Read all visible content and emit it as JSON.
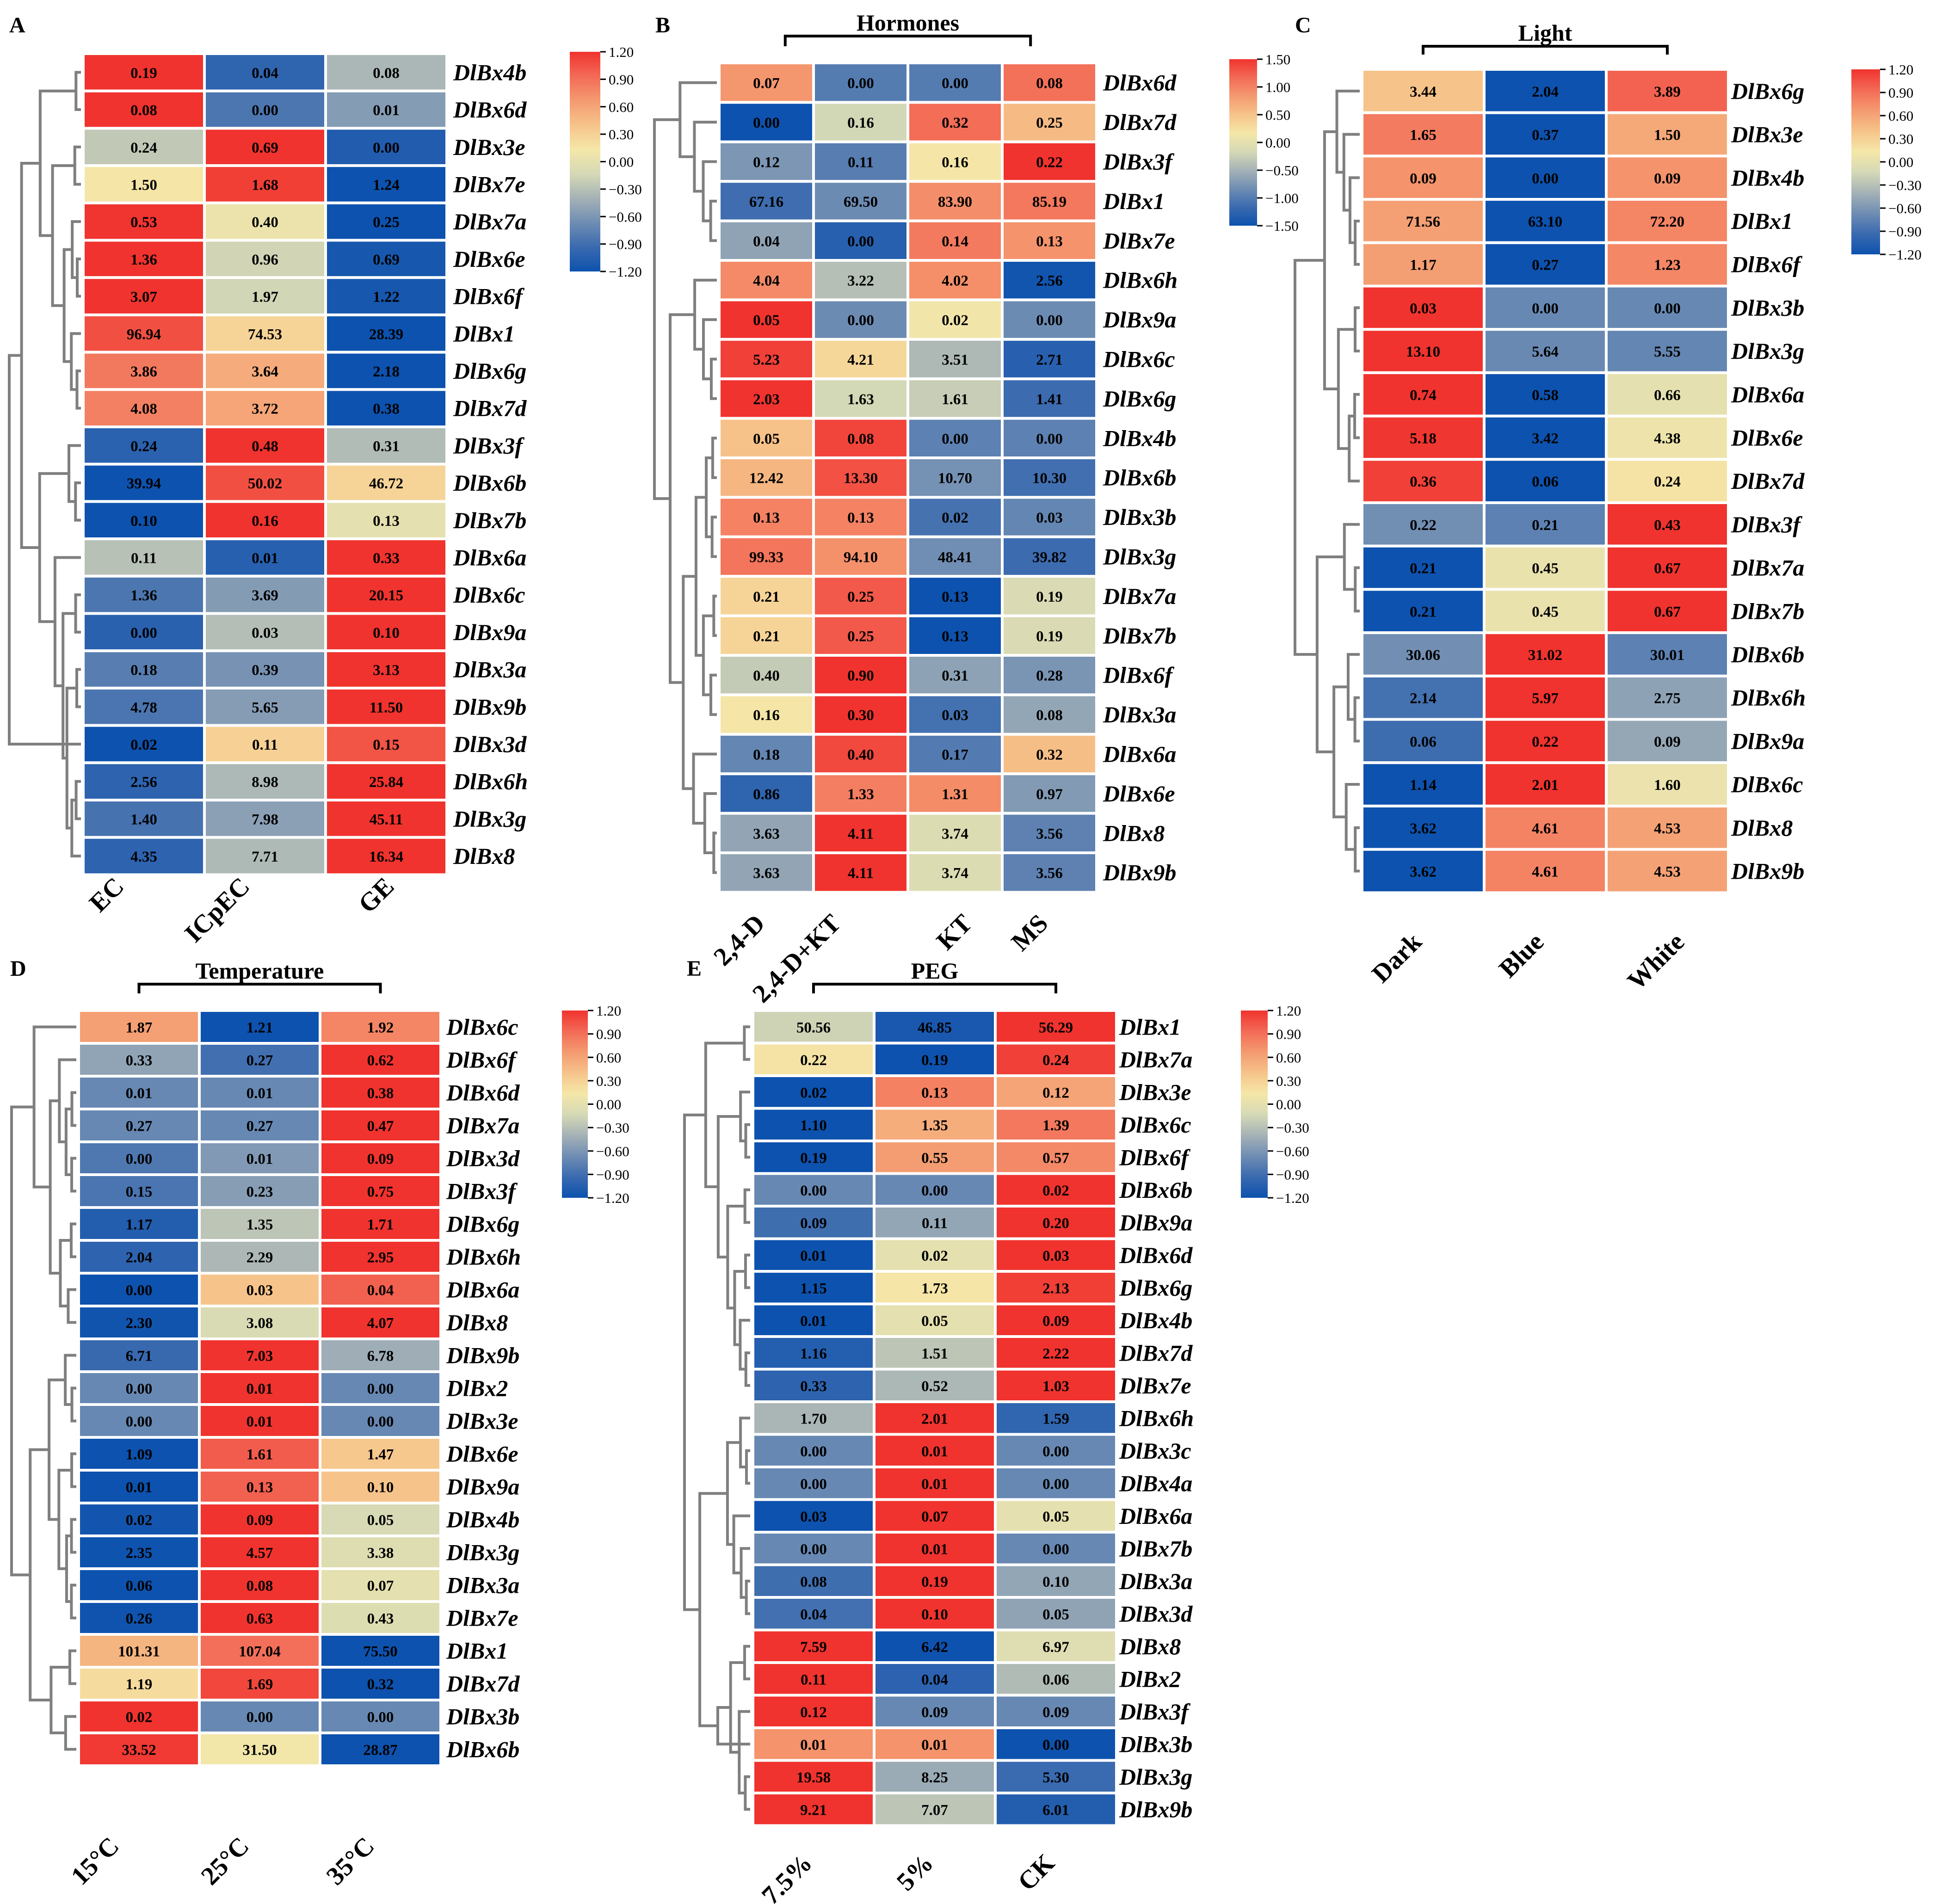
{
  "colors": {
    "scale": [
      "#0D52AE",
      "#3A6AAF",
      "#6F8DB3",
      "#A5B2B6",
      "#D5D9B6",
      "#F5E7A8",
      "#F6C38A",
      "#F49A70",
      "#F36A56",
      "#F0332E"
    ],
    "text": "#000000",
    "tree": "#7F7F7F",
    "grid": "#FFFFFF"
  },
  "chart_data": [
    {
      "type": "heatmap",
      "panel_label": "A",
      "columns": [
        "EC",
        "ICpEC",
        "GE"
      ],
      "rows": [
        "DlBx4b",
        "DlBx6d",
        "DlBx3e",
        "DlBx7e",
        "DlBx7a",
        "DlBx6e",
        "DlBx6f",
        "DlBx1",
        "DlBx6g",
        "DlBx7d",
        "DlBx3f",
        "DlBx6b",
        "DlBx7b",
        "DlBx6a",
        "DlBx6c",
        "DlBx9a",
        "DlBx3a",
        "DlBx9b",
        "DlBx3d",
        "DlBx6h",
        "DlBx3g",
        "DlBx8"
      ],
      "labels": [
        [
          "0.19",
          "0.04",
          "0.08"
        ],
        [
          "0.08",
          "0.00",
          "0.01"
        ],
        [
          "0.24",
          "0.69",
          "0.00"
        ],
        [
          "1.50",
          "1.68",
          "1.24"
        ],
        [
          "0.53",
          "0.40",
          "0.25"
        ],
        [
          "1.36",
          "0.96",
          "0.69"
        ],
        [
          "3.07",
          "1.97",
          "1.22"
        ],
        [
          "96.94",
          "74.53",
          "28.39"
        ],
        [
          "3.86",
          "3.64",
          "2.18"
        ],
        [
          "4.08",
          "3.72",
          "0.38"
        ],
        [
          "0.24",
          "0.48",
          "0.31"
        ],
        [
          "39.94",
          "50.02",
          "46.72"
        ],
        [
          "0.10",
          "0.16",
          "0.13"
        ],
        [
          "0.11",
          "0.01",
          "0.33"
        ],
        [
          "1.36",
          "3.69",
          "20.15"
        ],
        [
          "0.00",
          "0.03",
          "0.10"
        ],
        [
          "0.18",
          "0.39",
          "3.13"
        ],
        [
          "4.78",
          "5.65",
          "11.50"
        ],
        [
          "0.02",
          "0.11",
          "0.15"
        ],
        [
          "2.56",
          "8.98",
          "25.84"
        ],
        [
          "1.40",
          "7.98",
          "45.11"
        ],
        [
          "4.35",
          "7.71",
          "16.34"
        ]
      ],
      "scale_ticks": [
        "1.20",
        "0.90",
        "0.60",
        "0.30",
        "0.00",
        "−0.30",
        "−0.60",
        "−0.90",
        "−1.20"
      ],
      "scale_range": [
        -1.2,
        1.2
      ]
    },
    {
      "type": "heatmap",
      "panel_label": "B",
      "group_title": "Hormones",
      "columns": [
        "2,4-D",
        "2,4-D+KT",
        "KT",
        "MS"
      ],
      "rows": [
        "DlBx6d",
        "DlBx7d",
        "DlBx3f",
        "DlBx1",
        "DlBx7e",
        "DlBx6h",
        "DlBx9a",
        "DlBx6c",
        "DlBx6g",
        "DlBx4b",
        "DlBx6b",
        "DlBx3b",
        "DlBx3g",
        "DlBx7a",
        "DlBx7b",
        "DlBx6f",
        "DlBx3a",
        "DlBx6a",
        "DlBx6e",
        "DlBx8",
        "DlBx9b"
      ],
      "labels": [
        [
          "0.07",
          "0.00",
          "0.00",
          "0.08"
        ],
        [
          "0.00",
          "0.16",
          "0.32",
          "0.25"
        ],
        [
          "0.12",
          "0.11",
          "0.16",
          "0.22"
        ],
        [
          "67.16",
          "69.50",
          "83.90",
          "85.19"
        ],
        [
          "0.04",
          "0.00",
          "0.14",
          "0.13"
        ],
        [
          "4.04",
          "3.22",
          "4.02",
          "2.56"
        ],
        [
          "0.05",
          "0.00",
          "0.02",
          "0.00"
        ],
        [
          "5.23",
          "4.21",
          "3.51",
          "2.71"
        ],
        [
          "2.03",
          "1.63",
          "1.61",
          "1.41"
        ],
        [
          "0.05",
          "0.08",
          "0.00",
          "0.00"
        ],
        [
          "12.42",
          "13.30",
          "10.70",
          "10.30"
        ],
        [
          "0.13",
          "0.13",
          "0.02",
          "0.03"
        ],
        [
          "99.33",
          "94.10",
          "48.41",
          "39.82"
        ],
        [
          "0.21",
          "0.25",
          "0.13",
          "0.19"
        ],
        [
          "0.21",
          "0.25",
          "0.13",
          "0.19"
        ],
        [
          "0.40",
          "0.90",
          "0.31",
          "0.28"
        ],
        [
          "0.16",
          "0.30",
          "0.03",
          "0.08"
        ],
        [
          "0.18",
          "0.40",
          "0.17",
          "0.32"
        ],
        [
          "0.86",
          "1.33",
          "1.31",
          "0.97"
        ],
        [
          "3.63",
          "4.11",
          "3.74",
          "3.56"
        ],
        [
          "3.63",
          "4.11",
          "3.74",
          "3.56"
        ]
      ],
      "scale_ticks": [
        "1.50",
        "1.00",
        "0.50",
        "0.00",
        "−0.50",
        "−1.00",
        "−1.50"
      ],
      "scale_range": [
        -1.5,
        1.5
      ]
    },
    {
      "type": "heatmap",
      "panel_label": "C",
      "group_title": "Light",
      "columns": [
        "Dark",
        "Blue",
        "White"
      ],
      "rows": [
        "DlBx6g",
        "DlBx3e",
        "DlBx4b",
        "DlBx1",
        "DlBx6f",
        "DlBx3b",
        "DlBx3g",
        "DlBx6a",
        "DlBx6e",
        "DlBx7d",
        "DlBx3f",
        "DlBx7a",
        "DlBx7b",
        "DlBx6b",
        "DlBx6h",
        "DlBx9a",
        "DlBx6c",
        "DlBx8",
        "DlBx9b"
      ],
      "labels": [
        [
          "3.44",
          "2.04",
          "3.89"
        ],
        [
          "1.65",
          "0.37",
          "1.50"
        ],
        [
          "0.09",
          "0.00",
          "0.09"
        ],
        [
          "71.56",
          "63.10",
          "72.20"
        ],
        [
          "1.17",
          "0.27",
          "1.23"
        ],
        [
          "0.03",
          "0.00",
          "0.00"
        ],
        [
          "13.10",
          "5.64",
          "5.55"
        ],
        [
          "0.74",
          "0.58",
          "0.66"
        ],
        [
          "5.18",
          "3.42",
          "4.38"
        ],
        [
          "0.36",
          "0.06",
          "0.24"
        ],
        [
          "0.22",
          "0.21",
          "0.43"
        ],
        [
          "0.21",
          "0.45",
          "0.67"
        ],
        [
          "0.21",
          "0.45",
          "0.67"
        ],
        [
          "30.06",
          "31.02",
          "30.01"
        ],
        [
          "2.14",
          "5.97",
          "2.75"
        ],
        [
          "0.06",
          "0.22",
          "0.09"
        ],
        [
          "1.14",
          "2.01",
          "1.60"
        ],
        [
          "3.62",
          "4.61",
          "4.53"
        ],
        [
          "3.62",
          "4.61",
          "4.53"
        ]
      ],
      "scale_ticks": [
        "1.20",
        "0.90",
        "0.60",
        "0.30",
        "0.00",
        "−0.30",
        "−0.60",
        "−0.90",
        "−1.20"
      ],
      "scale_range": [
        -1.2,
        1.2
      ]
    },
    {
      "type": "heatmap",
      "panel_label": "D",
      "group_title": "Temperature",
      "columns": [
        "15°C",
        "25°C",
        "35°C"
      ],
      "rows": [
        "DlBx6c",
        "DlBx6f",
        "DlBx6d",
        "DlBx7a",
        "DlBx3d",
        "DlBx3f",
        "DlBx6g",
        "DlBx6h",
        "DlBx6a",
        "DlBx8",
        "DlBx9b",
        "DlBx2",
        "DlBx3e",
        "DlBx6e",
        "DlBx9a",
        "DlBx4b",
        "DlBx3g",
        "DlBx3a",
        "DlBx7e",
        "DlBx1",
        "DlBx7d",
        "DlBx3b",
        "DlBx6b"
      ],
      "labels": [
        [
          "1.87",
          "1.21",
          "1.92"
        ],
        [
          "0.33",
          "0.27",
          "0.62"
        ],
        [
          "0.01",
          "0.01",
          "0.38"
        ],
        [
          "0.27",
          "0.27",
          "0.47"
        ],
        [
          "0.00",
          "0.01",
          "0.09"
        ],
        [
          "0.15",
          "0.23",
          "0.75"
        ],
        [
          "1.17",
          "1.35",
          "1.71"
        ],
        [
          "2.04",
          "2.29",
          "2.95"
        ],
        [
          "0.00",
          "0.03",
          "0.04"
        ],
        [
          "2.30",
          "3.08",
          "4.07"
        ],
        [
          "6.71",
          "7.03",
          "6.78"
        ],
        [
          "0.00",
          "0.01",
          "0.00"
        ],
        [
          "0.00",
          "0.01",
          "0.00"
        ],
        [
          "1.09",
          "1.61",
          "1.47"
        ],
        [
          "0.01",
          "0.13",
          "0.10"
        ],
        [
          "0.02",
          "0.09",
          "0.05"
        ],
        [
          "2.35",
          "4.57",
          "3.38"
        ],
        [
          "0.06",
          "0.08",
          "0.07"
        ],
        [
          "0.26",
          "0.63",
          "0.43"
        ],
        [
          "101.31",
          "107.04",
          "75.50"
        ],
        [
          "1.19",
          "1.69",
          "0.32"
        ],
        [
          "0.02",
          "0.00",
          "0.00"
        ],
        [
          "33.52",
          "31.50",
          "28.87"
        ]
      ],
      "scale_ticks": [
        "1.20",
        "0.90",
        "0.60",
        "0.30",
        "0.00",
        "−0.30",
        "−0.60",
        "−0.90",
        "−1.20"
      ],
      "scale_range": [
        -1.2,
        1.2
      ]
    },
    {
      "type": "heatmap",
      "panel_label": "E",
      "group_title": "PEG",
      "columns": [
        "7.5%",
        "5%",
        "CK"
      ],
      "rows": [
        "DlBx1",
        "DlBx7a",
        "DlBx3e",
        "DlBx6c",
        "DlBx6f",
        "DlBx6b",
        "DlBx9a",
        "DlBx6d",
        "DlBx6g",
        "DlBx4b",
        "DlBx7d",
        "DlBx7e",
        "DlBx6h",
        "DlBx3c",
        "DlBx4a",
        "DlBx6a",
        "DlBx7b",
        "DlBx3a",
        "DlBx3d",
        "DlBx8",
        "DlBx2",
        "DlBx3f",
        "DlBx3b",
        "DlBx3g",
        "DlBx9b"
      ],
      "labels": [
        [
          "50.56",
          "46.85",
          "56.29"
        ],
        [
          "0.22",
          "0.19",
          "0.24"
        ],
        [
          "0.02",
          "0.13",
          "0.12"
        ],
        [
          "1.10",
          "1.35",
          "1.39"
        ],
        [
          "0.19",
          "0.55",
          "0.57"
        ],
        [
          "0.00",
          "0.00",
          "0.02"
        ],
        [
          "0.09",
          "0.11",
          "0.20"
        ],
        [
          "0.01",
          "0.02",
          "0.03"
        ],
        [
          "1.15",
          "1.73",
          "2.13"
        ],
        [
          "0.01",
          "0.05",
          "0.09"
        ],
        [
          "1.16",
          "1.51",
          "2.22"
        ],
        [
          "0.33",
          "0.52",
          "1.03"
        ],
        [
          "1.70",
          "2.01",
          "1.59"
        ],
        [
          "0.00",
          "0.01",
          "0.00"
        ],
        [
          "0.00",
          "0.01",
          "0.00"
        ],
        [
          "0.03",
          "0.07",
          "0.05"
        ],
        [
          "0.00",
          "0.01",
          "0.00"
        ],
        [
          "0.08",
          "0.19",
          "0.10"
        ],
        [
          "0.04",
          "0.10",
          "0.05"
        ],
        [
          "7.59",
          "6.42",
          "6.97"
        ],
        [
          "0.11",
          "0.04",
          "0.06"
        ],
        [
          "0.12",
          "0.09",
          "0.09"
        ],
        [
          "0.01",
          "0.01",
          "0.00"
        ],
        [
          "19.58",
          "8.25",
          "5.30"
        ],
        [
          "9.21",
          "7.07",
          "6.01"
        ]
      ],
      "scale_ticks": [
        "1.20",
        "0.90",
        "0.60",
        "0.30",
        "0.00",
        "−0.30",
        "−0.60",
        "−0.90",
        "−1.20"
      ],
      "scale_range": [
        -1.2,
        1.2
      ]
    }
  ]
}
